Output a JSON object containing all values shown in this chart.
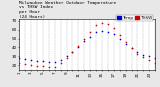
{
  "title": "Milwaukee Weather Outdoor Temperature\nvs THSW Index\nper Hour\n(24 Hours)",
  "background_color": "#e8e8e8",
  "plot_bg": "#ffffff",
  "blue_color": "#0000cc",
  "red_color": "#cc0000",
  "legend_blue_label": "Temp",
  "legend_red_label": "THSW",
  "hours": [
    0,
    1,
    2,
    3,
    4,
    5,
    6,
    7,
    8,
    9,
    10,
    11,
    12,
    13,
    14,
    15,
    16,
    17,
    18,
    19,
    20,
    21,
    22,
    23
  ],
  "xtick_labels": [
    "1",
    "",
    "3",
    "",
    "5",
    "",
    "7",
    "",
    "9",
    "",
    "11",
    "",
    "13",
    "",
    "15",
    "",
    "17",
    "",
    "19",
    "",
    "21",
    "",
    "23",
    ""
  ],
  "temp_values": [
    28,
    27,
    26,
    25,
    25,
    24,
    24,
    26,
    30,
    35,
    41,
    47,
    52,
    57,
    59,
    58,
    55,
    50,
    44,
    39,
    35,
    32,
    30,
    28
  ],
  "thsw_values": [
    22,
    21,
    20,
    19,
    19,
    18,
    18,
    22,
    28,
    35,
    42,
    50,
    57,
    65,
    68,
    66,
    62,
    54,
    46,
    39,
    33,
    29,
    26,
    23
  ],
  "ylim": [
    15,
    72
  ],
  "yticks": [
    20,
    30,
    40,
    50,
    60,
    70
  ],
  "xlim": [
    0,
    23
  ],
  "marker_size": 1.2,
  "grid_color": "#aaaaaa",
  "title_fontsize": 3.2,
  "tick_fontsize": 3.0,
  "legend_fontsize": 3.0
}
